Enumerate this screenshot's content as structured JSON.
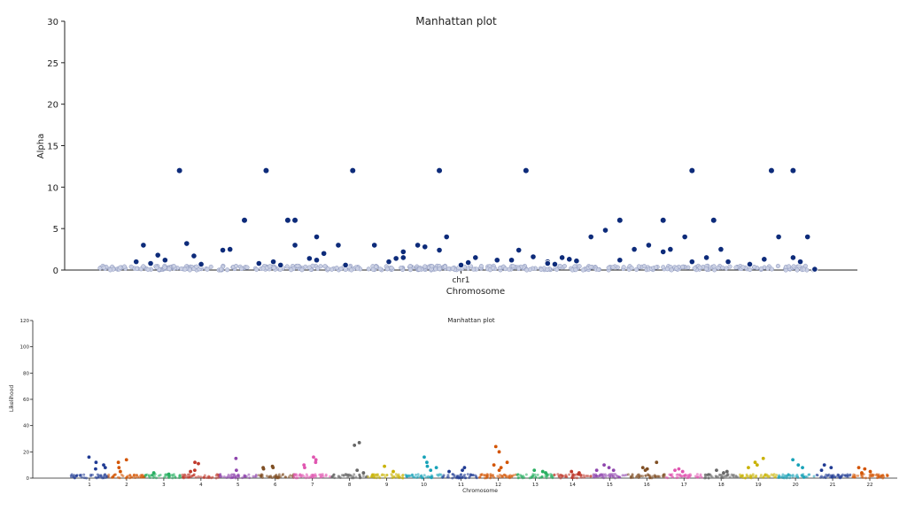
{
  "chart_data": [
    {
      "type": "scatter",
      "subtype": "manhattan",
      "title": "Manhattan plot",
      "xlabel": "Chromosome",
      "ylabel": "Alpha",
      "ylim": [
        0,
        30
      ],
      "yticks": [
        0,
        5,
        10,
        15,
        20,
        25,
        30
      ],
      "categories": [
        "chr1"
      ],
      "x_range": [
        0,
        1
      ],
      "grid": false,
      "legend": "none",
      "colors": {
        "point": "#0d2b7a",
        "baseline": "#9aa3c4"
      },
      "series": [
        {
          "chromosome": "chr1",
          "x": [
            0.05,
            0.06,
            0.08,
            0.07,
            0.09,
            0.12,
            0.13,
            0.17,
            0.18,
            0.24,
            0.25,
            0.27,
            0.29,
            0.3,
            0.31,
            0.3,
            0.33,
            0.38,
            0.4,
            0.41,
            0.42,
            0.44,
            0.42,
            0.45,
            0.47,
            0.48,
            0.5,
            0.52,
            0.55,
            0.57,
            0.58,
            0.6,
            0.62,
            0.63,
            0.65,
            0.64,
            0.66,
            0.68,
            0.7,
            0.72,
            0.74,
            0.76,
            0.78,
            0.79,
            0.81,
            0.82,
            0.84,
            0.86,
            0.87,
            0.9,
            0.92,
            0.94,
            0.96,
            0.97,
            0.98,
            0.99,
            0.62,
            0.14,
            0.22,
            0.34,
            0.51
          ],
          "y": [
            1.0,
            3.0,
            1.8,
            0.8,
            1.2,
            3.2,
            1.7,
            2.4,
            2.5,
            1.0,
            0.6,
            3.0,
            1.4,
            4.0,
            2.0,
            1.2,
            3.0,
            3.0,
            1.0,
            1.4,
            2.2,
            3.0,
            1.5,
            2.8,
            2.4,
            4.0,
            0.6,
            1.5,
            1.2,
            1.2,
            2.4,
            1.6,
            1.0,
            0.7,
            1.3,
            1.5,
            1.1,
            4.0,
            4.8,
            1.2,
            2.5,
            3.0,
            2.2,
            2.5,
            4.0,
            1.0,
            1.5,
            2.5,
            1.0,
            0.7,
            1.3,
            4.0,
            1.5,
            1.0,
            4.0,
            0.1,
            0.8,
            0.7,
            0.8,
            0.6,
            0.9
          ],
          "peaks_x": [
            0.11,
            0.23,
            0.35,
            0.47,
            0.59,
            0.72,
            0.85,
            0.96,
            0.2,
            0.26,
            0.26,
            0.27,
            0.82,
            0.78,
            0.93
          ],
          "peaks_y": [
            12,
            12,
            12,
            12,
            12,
            6,
            6,
            12,
            6,
            6,
            6,
            6,
            12,
            6,
            12
          ]
        }
      ]
    },
    {
      "type": "scatter",
      "subtype": "manhattan",
      "title": "Manhattan plot",
      "xlabel": "Chromosome",
      "ylabel": "Likelihood",
      "ylim": [
        0,
        120
      ],
      "yticks": [
        0,
        20,
        40,
        60,
        80,
        100,
        120
      ],
      "categories": [
        "1",
        "2",
        "3",
        "4",
        "5",
        "6",
        "7",
        "8",
        "9",
        "10",
        "11",
        "12",
        "13",
        "14",
        "15",
        "16",
        "17",
        "18",
        "19",
        "20",
        "21",
        "22"
      ],
      "grid": false,
      "legend": "none",
      "chromosome_colors": [
        "#1f3a93",
        "#d35400",
        "#27ae60",
        "#c0392b",
        "#8e44ad",
        "#7f4f24",
        "#e056b0",
        "#666666",
        "#c9b200",
        "#17a2b8",
        "#1f3a93",
        "#d35400",
        "#27ae60",
        "#c0392b",
        "#8e44ad",
        "#7f4f24",
        "#e056b0",
        "#666666",
        "#c9b200",
        "#17a2b8",
        "#1f3a93",
        "#d35400"
      ],
      "peaks": [
        {
          "chr": 1,
          "y": [
            16,
            12,
            10,
            8,
            7
          ]
        },
        {
          "chr": 2,
          "y": [
            14,
            12,
            8,
            5
          ]
        },
        {
          "chr": 3,
          "y": [
            4,
            3
          ]
        },
        {
          "chr": 4,
          "y": [
            12,
            11,
            6,
            5
          ]
        },
        {
          "chr": 5,
          "y": [
            15,
            6
          ]
        },
        {
          "chr": 6,
          "y": [
            9,
            8,
            8,
            7
          ]
        },
        {
          "chr": 7,
          "y": [
            16,
            14,
            12,
            10,
            8
          ]
        },
        {
          "chr": 8,
          "y": [
            27,
            25,
            6,
            4
          ]
        },
        {
          "chr": 9,
          "y": [
            9,
            5
          ]
        },
        {
          "chr": 10,
          "y": [
            16,
            12,
            9,
            8,
            6
          ]
        },
        {
          "chr": 11,
          "y": [
            8,
            6,
            5
          ]
        },
        {
          "chr": 12,
          "y": [
            24,
            20,
            12,
            10,
            8,
            6
          ]
        },
        {
          "chr": 13,
          "y": [
            6,
            5,
            4
          ]
        },
        {
          "chr": 14,
          "y": [
            5,
            4,
            3
          ]
        },
        {
          "chr": 15,
          "y": [
            10,
            8,
            6,
            6
          ]
        },
        {
          "chr": 16,
          "y": [
            12,
            8,
            7,
            6
          ]
        },
        {
          "chr": 17,
          "y": [
            7,
            6,
            5
          ]
        },
        {
          "chr": 18,
          "y": [
            6,
            5,
            4
          ]
        },
        {
          "chr": 19,
          "y": [
            15,
            12,
            10,
            8
          ]
        },
        {
          "chr": 20,
          "y": [
            14,
            10,
            8
          ]
        },
        {
          "chr": 21,
          "y": [
            10,
            8,
            6
          ]
        },
        {
          "chr": 22,
          "y": [
            8,
            7,
            5,
            4
          ]
        }
      ]
    }
  ]
}
